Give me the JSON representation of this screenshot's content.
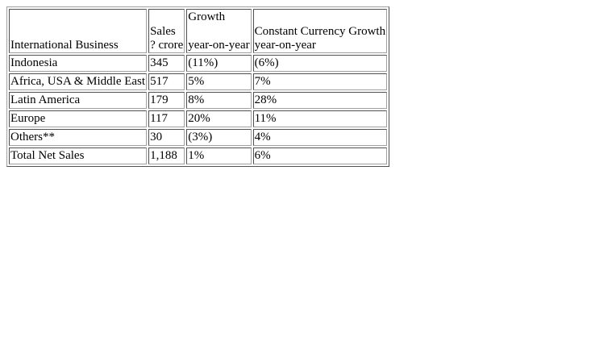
{
  "table": {
    "headers": {
      "business": "International Business",
      "sales_line1": "Sales",
      "sales_line2": "? crore",
      "growth_line1": "Growth",
      "growth_line2": "year-on-year",
      "cc_line1": "Constant Currency Growth",
      "cc_line2": "year-on-year"
    },
    "rows": [
      {
        "business": "Indonesia",
        "sales": "345",
        "growth": "(11%)",
        "cc_growth": "(6%)"
      },
      {
        "business": "Africa, USA & Middle East",
        "sales": "517",
        "growth": "5%",
        "cc_growth": "7%"
      },
      {
        "business": "Latin America",
        "sales": "179",
        "growth": "8%",
        "cc_growth": "28%"
      },
      {
        "business": "Europe",
        "sales": "117",
        "growth": "20%",
        "cc_growth": "11%"
      },
      {
        "business": "Others**",
        "sales": "30",
        "growth": "(3%)",
        "cc_growth": "4%"
      },
      {
        "business": "Total Net Sales",
        "sales": "1,188",
        "growth": "1%",
        "cc_growth": "6%"
      }
    ]
  }
}
